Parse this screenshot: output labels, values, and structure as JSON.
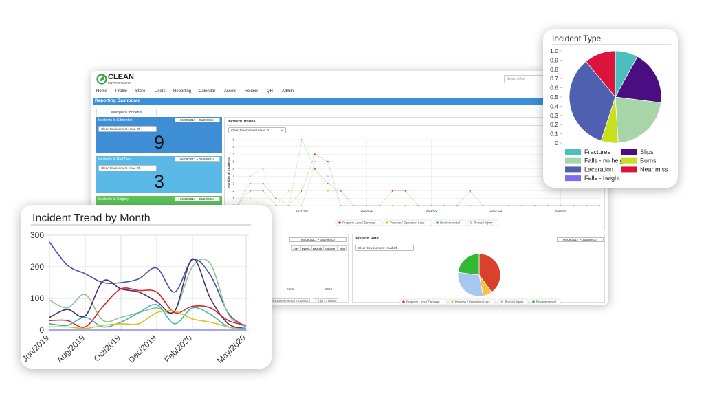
{
  "dashboard": {
    "logo": {
      "name": "CLEAN",
      "tagline": "ENVIRONMENT"
    },
    "search_placeholder": "Search User",
    "nav": [
      "Home",
      "Profile",
      "Store",
      "Users",
      "Reporting",
      "Calendar",
      "Assets",
      "Folders",
      "QR",
      "Admin"
    ],
    "page_title": "Reporting Dashboard",
    "tab": "Workplace Incidents",
    "cards": [
      {
        "title": "Incidents In Edmonton",
        "date_range": "06/09/2017 ~ 06/09/2024",
        "dropdown": "Clean Environment Head Of...",
        "count": 9
      },
      {
        "title": "Incidents In Red Deer",
        "date_range": "06/09/2017 ~ 06/09/2024",
        "dropdown": "Clean Environment Head Of...",
        "count": 3
      },
      {
        "title": "Incidents In Calgary",
        "date_range": "06/09/2017 ~ 06/09/2024"
      }
    ],
    "trends_dropdown": "Clean Environment Head Of...",
    "history_panel": {
      "date_range": "06/09/2017 ~ 06/09/2024",
      "buttons": [
        "Day",
        "Week",
        "Month",
        "Quarter",
        "Year"
      ],
      "x_labels": [
        "2023",
        "2024"
      ],
      "legend": [
        "Environmental Incidents",
        "Injury / Illness"
      ]
    },
    "ratio_panel": {
      "date_range": "06/09/2017 ~ 06/09/2024",
      "dropdown": "Clean Environment Head Of..."
    }
  },
  "chart_data": [
    {
      "type": "pie",
      "title": "Incident Type",
      "categories": [
        "Fractures",
        "Slips",
        "Falls - no height",
        "Burns",
        "Laceration",
        "Near miss",
        "Falls - height"
      ],
      "values": [
        8,
        19,
        22,
        6,
        34,
        11,
        0
      ],
      "colors": [
        "#4bbfbf",
        "#4b0d82",
        "#a8d5a8",
        "#c8e01c",
        "#5060b0",
        "#dc143c",
        "#7b6cf0"
      ],
      "ylim": [
        0,
        1
      ],
      "yticks": [
        0,
        0.1,
        0.2,
        0.3,
        0.4,
        0.5,
        0.6,
        0.7,
        0.8,
        0.9,
        {
          "value": 1,
          "label": "1.0"
        }
      ]
    },
    {
      "type": "line",
      "title": "Incident Trend by Month",
      "smooth": true,
      "grid": true,
      "categories": [
        "Jun/2019",
        null,
        "Aug/2019",
        null,
        "Oct/2019",
        null,
        "Dec/2019",
        null,
        "Feb/2020",
        null,
        null,
        "May/2020"
      ],
      "ylim": [
        0,
        300
      ],
      "yticks": [
        0,
        100,
        200,
        300
      ],
      "series": [
        {
          "color": "#3f51b5",
          "values": [
            278,
            205,
            178,
            150,
            150,
            162,
            196,
            120,
            222,
            174,
            54,
            10
          ]
        },
        {
          "color": "#8cc68c",
          "values": [
            95,
            70,
            112,
            30,
            40,
            55,
            70,
            60,
            200,
            210,
            50,
            10
          ]
        },
        {
          "color": "#4b2c6f",
          "values": [
            40,
            65,
            45,
            155,
            130,
            120,
            90,
            60,
            225,
            100,
            20,
            5
          ]
        },
        {
          "color": "#e02020",
          "values": [
            30,
            30,
            10,
            75,
            130,
            125,
            120,
            55,
            75,
            70,
            30,
            15
          ]
        },
        {
          "color": "#3fb5b5",
          "values": [
            20,
            15,
            40,
            10,
            25,
            55,
            80,
            20,
            70,
            50,
            10,
            5
          ]
        },
        {
          "color": "#d8c41e",
          "values": [
            10,
            10,
            5,
            15,
            20,
            20,
            55,
            60,
            35,
            25,
            10,
            0
          ]
        },
        {
          "color": "#8888ff",
          "values": [
            0,
            0,
            0,
            0,
            0,
            0,
            0,
            0,
            0,
            0,
            0,
            0
          ]
        }
      ]
    },
    {
      "type": "line",
      "title": "Incident Trends",
      "y_label": "Number of Incidents",
      "markers": true,
      "grid": true,
      "categories": [
        null,
        null,
        null,
        null,
        null,
        "2016-Q4",
        null,
        null,
        null,
        null,
        "2020-Q1",
        null,
        null,
        null,
        null,
        "2021-Q2",
        null,
        null,
        null,
        null,
        "2022-Q3",
        null,
        null,
        null,
        null,
        "2023-Q4",
        null,
        null,
        null
      ],
      "ylim": [
        0,
        9
      ],
      "yticks": [
        0,
        1,
        2,
        3,
        4,
        5,
        6,
        7,
        8,
        9
      ],
      "series": [
        {
          "name": "Property Loss / Damage",
          "color": "#d63a2a",
          "values": [
            0,
            3,
            3,
            1,
            0,
            2,
            7,
            6,
            0,
            0,
            0,
            0,
            2,
            2,
            0,
            0,
            0,
            0,
            2,
            0,
            0,
            0,
            0,
            0,
            0,
            0,
            0,
            0,
            0
          ]
        },
        {
          "name": "Process / Operation Loss",
          "color": "#f0c030",
          "values": [
            0,
            1,
            0,
            0,
            2,
            0,
            5,
            2,
            2,
            0,
            0,
            0,
            0,
            0,
            0,
            0,
            0,
            0,
            0,
            0,
            0,
            0,
            0,
            0,
            0,
            0,
            0,
            0,
            0
          ]
        },
        {
          "name": "Environmental",
          "color": "#2db83d",
          "values": [
            0,
            2,
            2,
            0,
            0,
            9,
            5,
            3,
            2,
            0,
            0,
            0,
            0,
            0,
            0,
            0,
            0,
            0,
            0,
            0,
            0,
            0,
            0,
            0,
            0,
            0,
            0,
            0,
            0
          ]
        },
        {
          "name": "Illness / Injury",
          "color": "#a0c4ee",
          "values": [
            0,
            4,
            5,
            0,
            0,
            0,
            6,
            4,
            0,
            0,
            0,
            0,
            0,
            0,
            0,
            0,
            0,
            0,
            0,
            0,
            0,
            0,
            0,
            0,
            0,
            0,
            0,
            0,
            0
          ]
        }
      ]
    },
    {
      "type": "pie",
      "title": "Incident Ratio",
      "categories": [
        "Property Loss / Damage",
        "Process / Operation Loss",
        "Illness / Injury",
        "Environmental"
      ],
      "values": [
        40,
        7,
        30,
        23
      ],
      "colors": [
        "#d9412b",
        "#f5c242",
        "#a6c8ee",
        "#33b833"
      ]
    }
  ]
}
